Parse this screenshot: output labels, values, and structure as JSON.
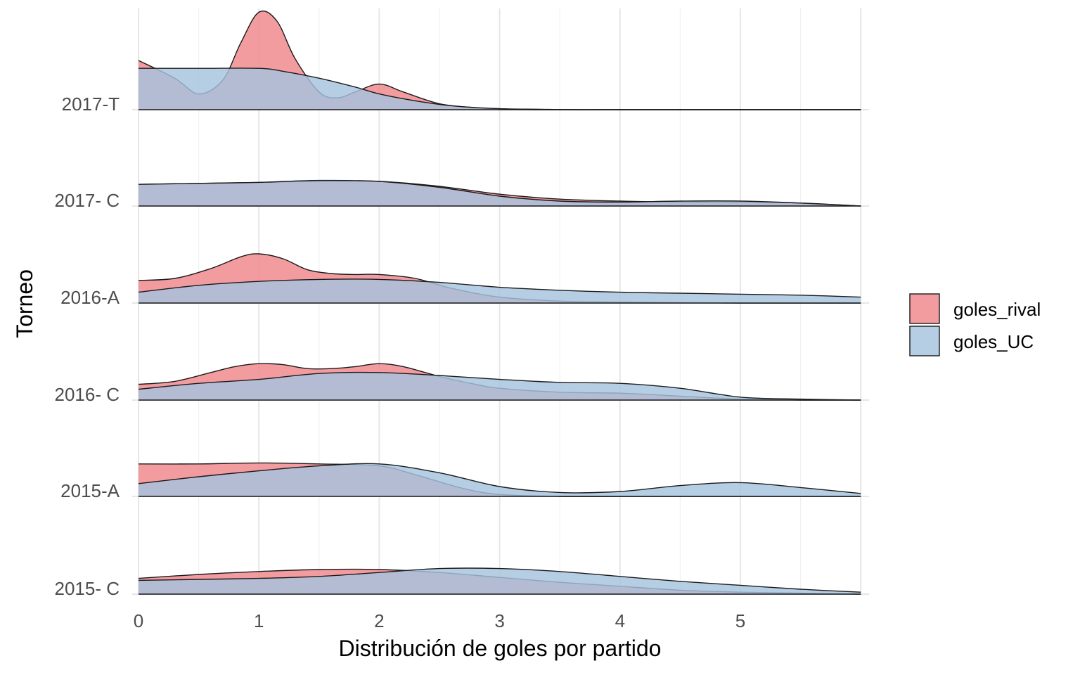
{
  "chart_data": {
    "type": "ridgeline",
    "xlabel": "Distribución de goles por partido",
    "ylabel": "Torneo",
    "xlim": [
      0,
      6
    ],
    "xticks": [
      0,
      1,
      2,
      3,
      4,
      5
    ],
    "grid": true,
    "legend_position": "right",
    "categories": [
      "2017-T",
      "2017- C",
      "2016-A",
      "2016- C",
      "2015-A",
      "2015- C"
    ],
    "series": [
      {
        "name": "goles_rival",
        "color": "#F0868B",
        "densities": [
          {
            "x": [
              0,
              0.3,
              0.5,
              0.7,
              0.85,
              1,
              1.15,
              1.3,
              1.5,
              1.65,
              1.8,
              2,
              2.2,
              2.5,
              2.8,
              3.0,
              3.3,
              4,
              5,
              6
            ],
            "y": [
              0.5,
              0.32,
              0.16,
              0.3,
              0.68,
              0.99,
              0.9,
              0.52,
              0.18,
              0.12,
              0.18,
              0.26,
              0.18,
              0.06,
              0.02,
              0.01,
              0,
              0,
              0,
              0
            ]
          },
          {
            "x": [
              0,
              0.5,
              1,
              1.5,
              2,
              2.5,
              3,
              3.5,
              4,
              4.5,
              5,
              5.5,
              6
            ],
            "y": [
              0.22,
              0.23,
              0.24,
              0.25,
              0.25,
              0.2,
              0.12,
              0.07,
              0.05,
              0.04,
              0.04,
              0.03,
              0
            ]
          },
          {
            "x": [
              0,
              0.3,
              0.6,
              0.85,
              1,
              1.2,
              1.4,
              1.6,
              1.8,
              2,
              2.3,
              2.6,
              3,
              3.5,
              4,
              5,
              6
            ],
            "y": [
              0.23,
              0.25,
              0.35,
              0.47,
              0.5,
              0.45,
              0.34,
              0.3,
              0.29,
              0.29,
              0.25,
              0.15,
              0.06,
              0.02,
              0.01,
              0,
              0
            ]
          },
          {
            "x": [
              0,
              0.3,
              0.6,
              0.8,
              1,
              1.2,
              1.4,
              1.6,
              1.8,
              2,
              2.2,
              2.5,
              2.8,
              3,
              3.5,
              4,
              4.5,
              5,
              5.5,
              6
            ],
            "y": [
              0.16,
              0.19,
              0.28,
              0.34,
              0.37,
              0.36,
              0.32,
              0.32,
              0.34,
              0.37,
              0.34,
              0.24,
              0.16,
              0.12,
              0.08,
              0.07,
              0.04,
              0.01,
              0,
              0
            ]
          },
          {
            "x": [
              0,
              0.5,
              1,
              1.5,
              2,
              2.3,
              2.7,
              3,
              3.5,
              4,
              5,
              6
            ],
            "y": [
              0.33,
              0.33,
              0.34,
              0.33,
              0.31,
              0.22,
              0.08,
              0.02,
              0,
              0,
              0,
              0
            ]
          },
          {
            "x": [
              0,
              0.5,
              1,
              1.5,
              2,
              2.5,
              3,
              3.5,
              4,
              4.5,
              5,
              5.5,
              6
            ],
            "y": [
              0.16,
              0.2,
              0.23,
              0.25,
              0.25,
              0.22,
              0.17,
              0.12,
              0.08,
              0.04,
              0.02,
              0.01,
              0
            ]
          }
        ]
      },
      {
        "name": "goles_UC",
        "color": "#A6C3DE",
        "densities": [
          {
            "x": [
              0,
              0.5,
              1,
              1.2,
              1.5,
              1.8,
              2,
              2.3,
              2.6,
              3,
              3.3,
              3.6,
              4,
              5,
              6
            ],
            "y": [
              0.42,
              0.42,
              0.42,
              0.39,
              0.32,
              0.23,
              0.16,
              0.09,
              0.04,
              0.01,
              0.005,
              0,
              0,
              0,
              0
            ]
          },
          {
            "x": [
              0,
              0.5,
              1,
              1.5,
              2,
              2.5,
              3,
              3.5,
              4,
              4.5,
              5,
              5.5,
              6
            ],
            "y": [
              0.22,
              0.23,
              0.24,
              0.26,
              0.25,
              0.19,
              0.1,
              0.05,
              0.04,
              0.05,
              0.05,
              0.03,
              0
            ]
          },
          {
            "x": [
              0,
              0.5,
              1,
              1.5,
              2,
              2.5,
              3,
              3.5,
              4,
              4.5,
              5,
              5.5,
              6
            ],
            "y": [
              0.11,
              0.18,
              0.22,
              0.24,
              0.24,
              0.21,
              0.16,
              0.13,
              0.11,
              0.1,
              0.09,
              0.08,
              0.06
            ]
          },
          {
            "x": [
              0,
              0.5,
              1,
              1.5,
              2,
              2.5,
              3,
              3.5,
              4,
              4.5,
              5,
              5.5,
              6
            ],
            "y": [
              0.11,
              0.17,
              0.21,
              0.27,
              0.28,
              0.25,
              0.21,
              0.18,
              0.17,
              0.12,
              0.03,
              0.01,
              0
            ]
          },
          {
            "x": [
              0,
              0.5,
              1,
              1.5,
              2,
              2.5,
              3,
              3.5,
              4,
              4.5,
              5,
              5.5,
              6
            ],
            "y": [
              0.13,
              0.2,
              0.26,
              0.31,
              0.33,
              0.24,
              0.1,
              0.04,
              0.05,
              0.11,
              0.14,
              0.09,
              0.03
            ]
          },
          {
            "x": [
              0,
              0.5,
              1,
              1.5,
              2,
              2.5,
              3,
              3.5,
              4,
              4.5,
              5,
              5.5,
              6
            ],
            "y": [
              0.14,
              0.15,
              0.16,
              0.18,
              0.22,
              0.26,
              0.26,
              0.23,
              0.18,
              0.13,
              0.09,
              0.05,
              0.02
            ]
          }
        ]
      }
    ]
  }
}
